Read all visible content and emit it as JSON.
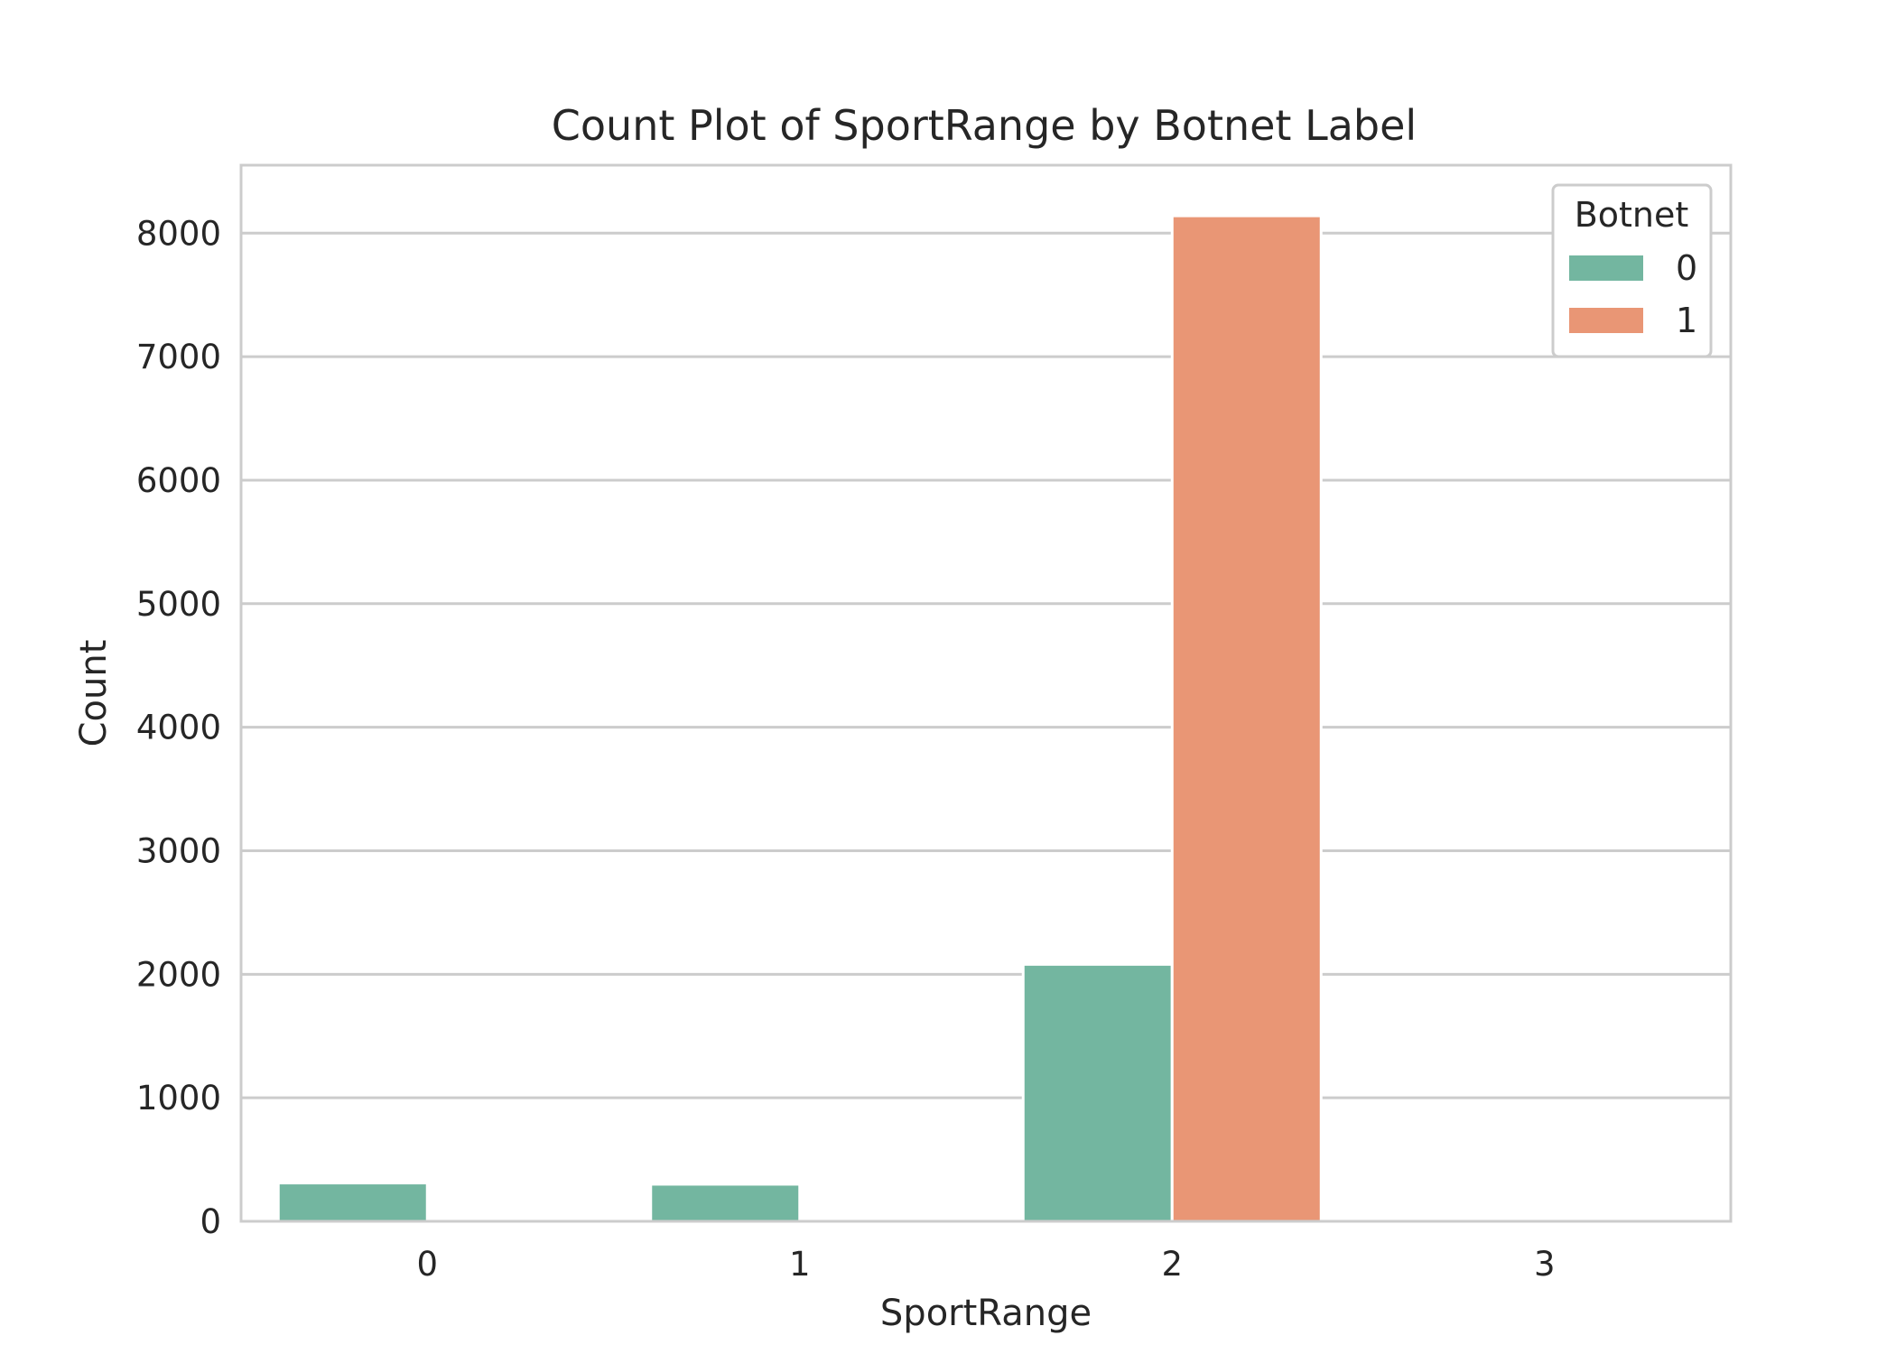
{
  "chart_data": {
    "type": "bar",
    "title": "Count Plot of SportRange by Botnet Label",
    "xlabel": "SportRange",
    "ylabel": "Count",
    "categories": [
      "0",
      "1",
      "2",
      "3"
    ],
    "ylim": [
      0,
      8550
    ],
    "yticks": [
      0,
      1000,
      2000,
      3000,
      4000,
      5000,
      6000,
      7000,
      8000
    ],
    "grid": true,
    "legend": {
      "title": "Botnet",
      "position": "top-right"
    },
    "series": [
      {
        "name": "0",
        "color": "#73b6a0",
        "values": [
          310,
          300,
          2080,
          0
        ]
      },
      {
        "name": "1",
        "color": "#e99675",
        "values": [
          0,
          0,
          8140,
          0
        ]
      }
    ]
  }
}
